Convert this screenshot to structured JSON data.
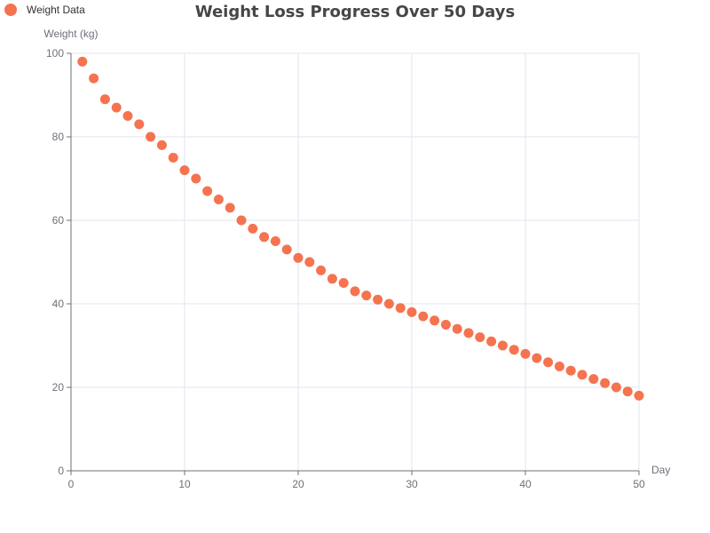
{
  "chart_data": {
    "type": "scatter",
    "title": "Weight Loss Progress Over 50 Days",
    "xlabel": "Day",
    "ylabel": "Weight (kg)",
    "xlim": [
      0,
      50
    ],
    "ylim": [
      0,
      100
    ],
    "xticks": [
      0,
      10,
      20,
      30,
      40,
      50
    ],
    "yticks": [
      0,
      20,
      40,
      60,
      80,
      100
    ],
    "grid": true,
    "legend_position": "top-left",
    "colors": {
      "series": "#f5734f",
      "axis": "#6e7079",
      "grid": "#e0e6f1",
      "title": "#464646"
    },
    "series": [
      {
        "name": "Weight Data",
        "x": [
          1,
          2,
          3,
          4,
          5,
          6,
          7,
          8,
          9,
          10,
          11,
          12,
          13,
          14,
          15,
          16,
          17,
          18,
          19,
          20,
          21,
          22,
          23,
          24,
          25,
          26,
          27,
          28,
          29,
          30,
          31,
          32,
          33,
          34,
          35,
          36,
          37,
          38,
          39,
          40,
          41,
          42,
          43,
          44,
          45,
          46,
          47,
          48,
          49,
          50
        ],
        "y": [
          98,
          94,
          89,
          87,
          85,
          83,
          80,
          78,
          75,
          72,
          70,
          67,
          65,
          63,
          60,
          58,
          56,
          55,
          53,
          51,
          50,
          48,
          46,
          45,
          43,
          42,
          41,
          40,
          39,
          38,
          37,
          36,
          35,
          34,
          33,
          32,
          31,
          30,
          29,
          28,
          27,
          26,
          25,
          24,
          23,
          22,
          21,
          20,
          19,
          18
        ]
      }
    ]
  }
}
